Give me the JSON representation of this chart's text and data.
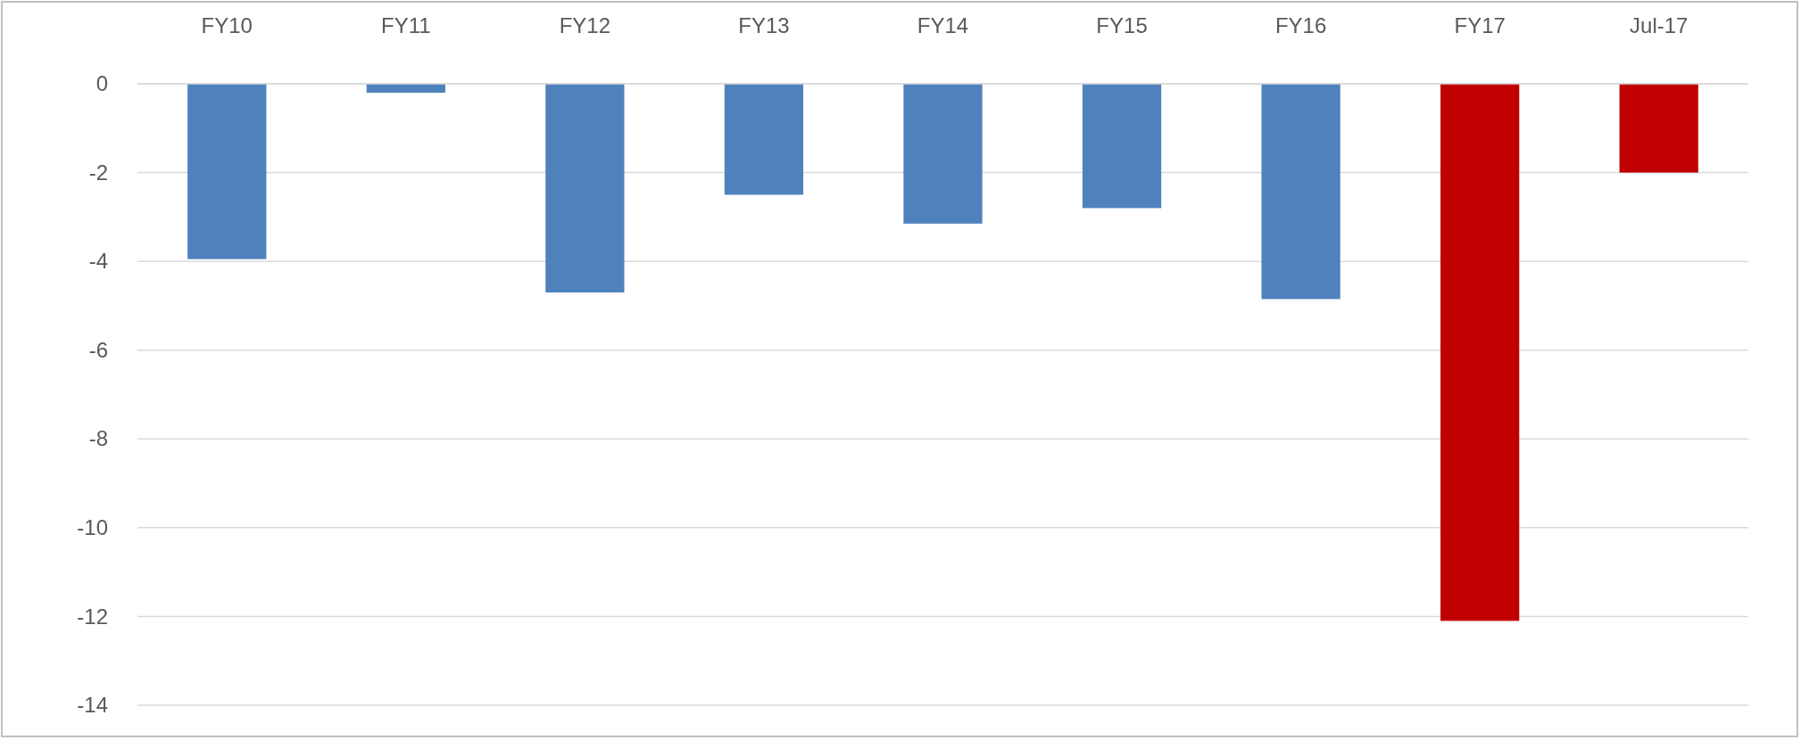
{
  "chart_data": {
    "type": "bar",
    "categories": [
      "FY10",
      "FY11",
      "FY12",
      "FY13",
      "FY14",
      "FY15",
      "FY16",
      "FY17",
      "Jul-17"
    ],
    "values": [
      -3.95,
      -0.2,
      -4.7,
      -2.5,
      -3.15,
      -2.8,
      -4.85,
      -12.1,
      -2.0
    ],
    "colors": [
      "#4f81bd",
      "#4f81bd",
      "#4f81bd",
      "#4f81bd",
      "#4f81bd",
      "#4f81bd",
      "#4f81bd",
      "#c00000",
      "#c00000"
    ],
    "ylim": [
      -14,
      0
    ],
    "yticks": [
      0,
      -2,
      -4,
      -6,
      -8,
      -10,
      -12,
      -14
    ],
    "grid": "y"
  }
}
